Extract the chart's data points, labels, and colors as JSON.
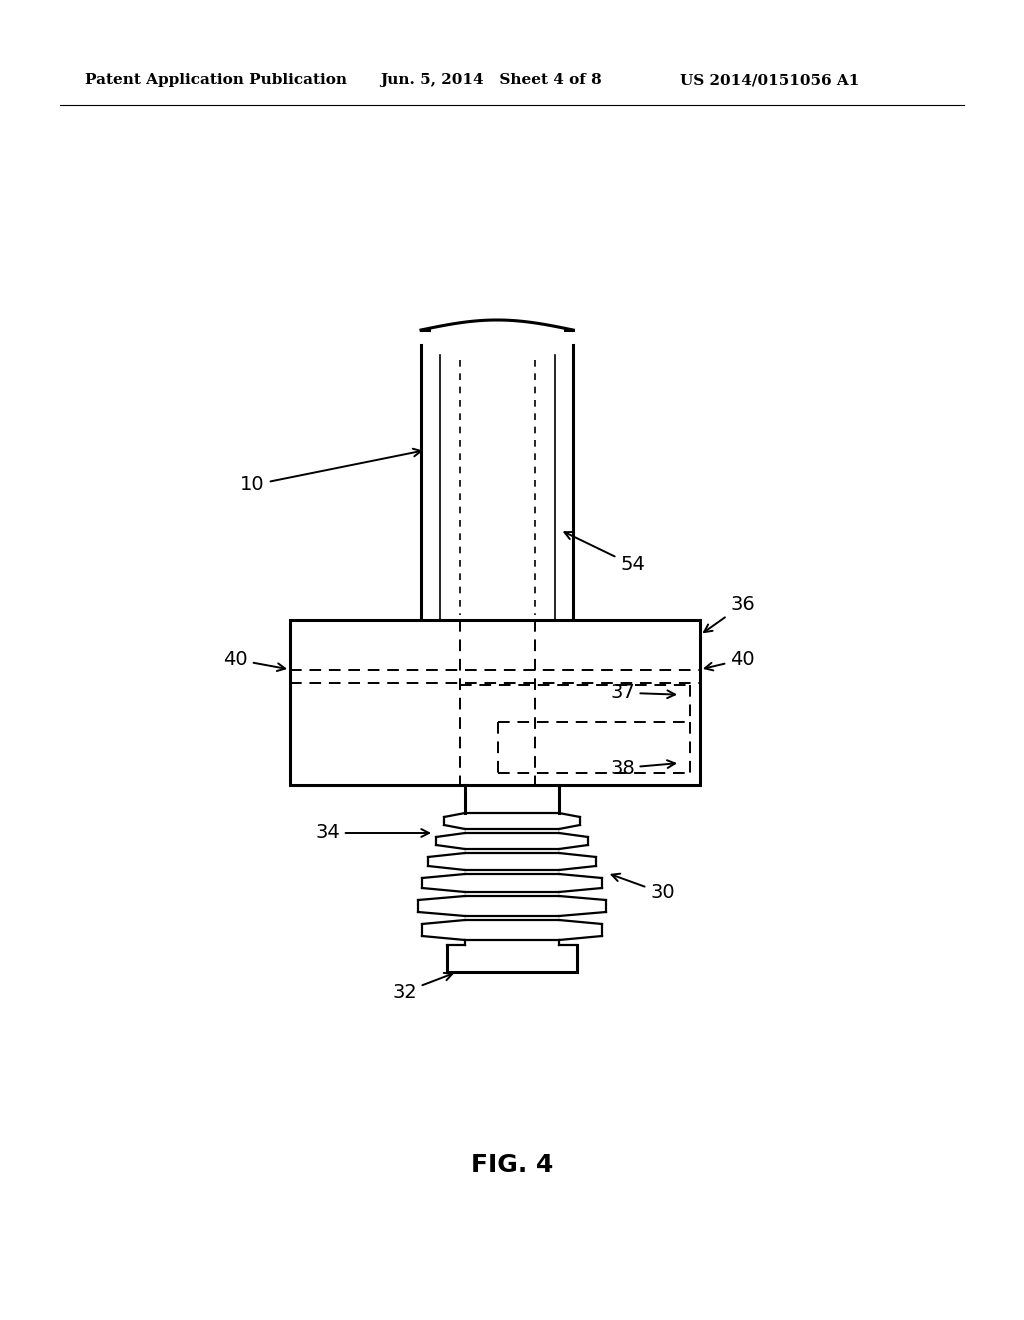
{
  "bg_color": "#ffffff",
  "line_color": "#000000",
  "header_text": "Patent Application Publication",
  "header_date": "Jun. 5, 2014   Sheet 4 of 8",
  "header_patent": "US 2014/0151056 A1",
  "fig_label": "FIG. 4"
}
